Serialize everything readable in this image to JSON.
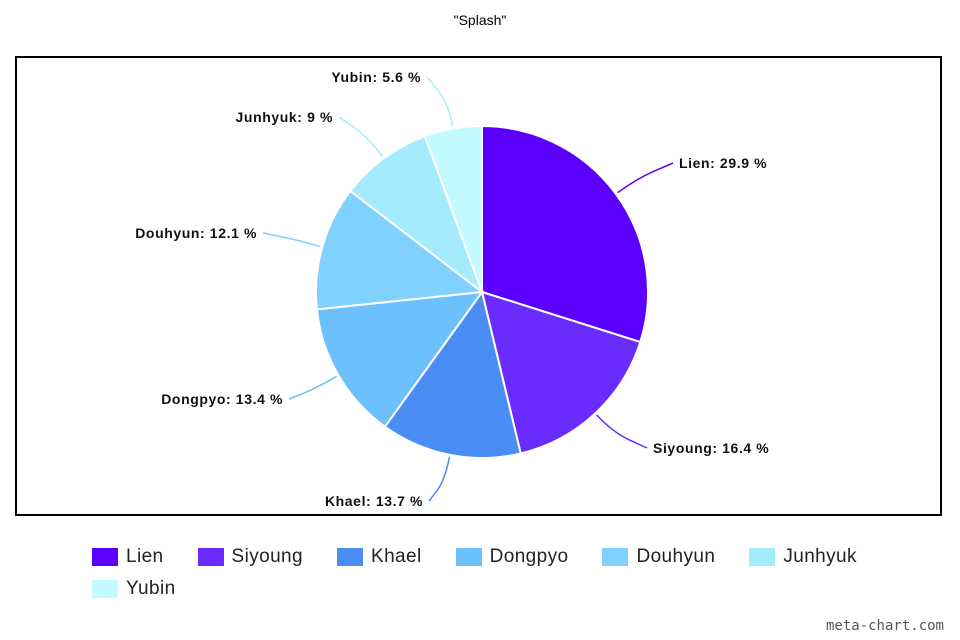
{
  "chart_data": {
    "type": "pie",
    "title": "\"Splash\"",
    "slices": [
      {
        "name": "Lien",
        "value": 29.9,
        "label": "Lien: 29.9 %",
        "color": "#5b00ff"
      },
      {
        "name": "Siyoung",
        "value": 16.4,
        "label": "Siyoung: 16.4 %",
        "color": "#6a2bff"
      },
      {
        "name": "Khael",
        "value": 13.7,
        "label": "Khael: 13.7 %",
        "color": "#4a8df5"
      },
      {
        "name": "Dongpyo",
        "value": 13.4,
        "label": "Dongpyo: 13.4 %",
        "color": "#6cc0fb"
      },
      {
        "name": "Douhyun",
        "value": 12.1,
        "label": "Douhyun: 12.1 %",
        "color": "#80d1fd"
      },
      {
        "name": "Junhyuk",
        "value": 9,
        "label": "Junhyuk: 9 %",
        "color": "#a4ecfd"
      },
      {
        "name": "Yubin",
        "value": 5.6,
        "label": "Yubin: 5.6 %",
        "color": "#c2faff"
      }
    ],
    "legend_position": "bottom",
    "start_angle": "top",
    "direction": "clockwise"
  },
  "watermark": "meta-chart.com"
}
